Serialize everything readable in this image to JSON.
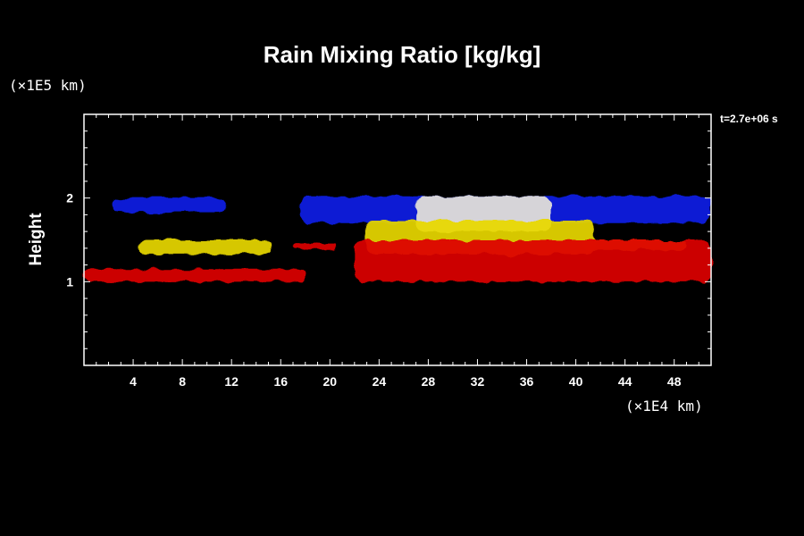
{
  "chart_data": {
    "type": "heatmap",
    "title": "Rain Mixing Ratio [kg/kg]",
    "ylabel": "Height",
    "yunit": "(×1E5 km)",
    "xunit": "(×1E4 km)",
    "time_label": "t=2.7e+06 s",
    "xlim": [
      0,
      51
    ],
    "ylim": [
      0,
      3
    ],
    "x_ticks": [
      4,
      8,
      12,
      16,
      20,
      24,
      28,
      32,
      36,
      40,
      44,
      48
    ],
    "x_tick_labels": [
      "4",
      "8",
      "12",
      "16",
      "20",
      "24",
      "28",
      "32",
      "36",
      "40",
      "44",
      "48"
    ],
    "y_ticks": [
      1,
      2
    ],
    "y_tick_labels": [
      "1",
      "2"
    ],
    "colors": {
      "red": "#dd0000",
      "yellow": "#e8d800",
      "green": "#00cc00",
      "blue": "#0a1ee6",
      "white": "#e8e4d8"
    },
    "regions": [
      {
        "color": "blue",
        "x": [
          2.2,
          11.5
        ],
        "y": [
          1.83,
          2.0
        ]
      },
      {
        "color": "blue",
        "x": [
          17.5,
          51
        ],
        "y": [
          1.7,
          2.02
        ]
      },
      {
        "color": "white",
        "x": [
          27,
          38
        ],
        "y": [
          1.6,
          2.02
        ]
      },
      {
        "color": "yellow",
        "x": [
          4.5,
          15.2
        ],
        "y": [
          1.33,
          1.5
        ]
      },
      {
        "color": "yellow",
        "x": [
          22.8,
          41.5
        ],
        "y": [
          1.33,
          1.73
        ]
      },
      {
        "color": "yellow",
        "x": [
          40.5,
          49
        ],
        "y": [
          1.38,
          1.5
        ]
      },
      {
        "color": "red",
        "x": [
          0,
          18
        ],
        "y": [
          1.0,
          1.15
        ]
      },
      {
        "color": "red",
        "x": [
          17,
          20.5
        ],
        "y": [
          1.38,
          1.45
        ]
      },
      {
        "color": "red",
        "x": [
          22,
          51
        ],
        "y": [
          1.0,
          1.5
        ]
      }
    ]
  }
}
